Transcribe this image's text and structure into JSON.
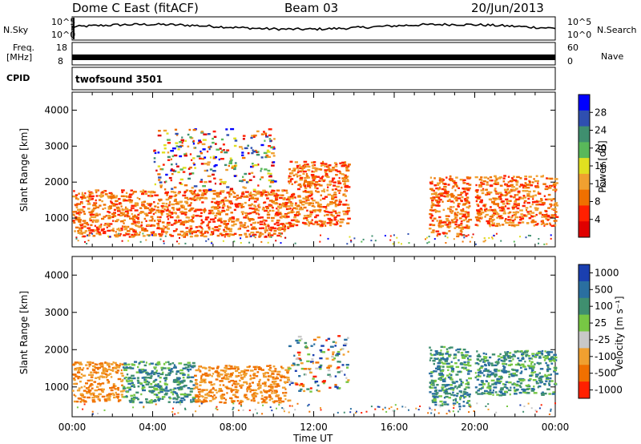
{
  "header": {
    "station": "Dome C East (fitACF)",
    "beam": "Beam 03",
    "date": "20/Jun/2013"
  },
  "strips": {
    "nsky_label": "N.Sky",
    "nsky_ticks": [
      "10^5",
      "10^0"
    ],
    "nsearch_label": "N.Search",
    "nsearch_ticks": [
      "10^5",
      "10^0"
    ],
    "freq_label_1": "Freq.",
    "freq_label_2": "[MHz]",
    "freq_ticks": [
      "18",
      "8"
    ],
    "nave_label": "Nave",
    "nave_ticks": [
      "60",
      "0"
    ],
    "cpid_label": "CPID",
    "cpid_value": "twofsound 3501"
  },
  "chart_data": [
    {
      "type": "heatmap",
      "name": "power",
      "ylabel": "Slant Range [km]",
      "yticks": [
        "1000",
        "2000",
        "3000",
        "4000"
      ],
      "ylim": [
        200,
        4500
      ],
      "xlim": [
        0,
        24
      ],
      "colorbar_label": "Power [dB]",
      "colorbar_ticks": [
        "4",
        "8",
        "12",
        "16",
        "20",
        "24",
        "28"
      ],
      "colorbar_colors": [
        "#0000ff",
        "#2f4fb0",
        "#3f8f6f",
        "#59b85a",
        "#e0e020",
        "#f0a030",
        "#f07000",
        "#ff2000",
        "#e00000"
      ],
      "echo_regions": [
        {
          "t0": 0.0,
          "t1": 10.7,
          "r0": 500,
          "r1": 1800,
          "level": "strong"
        },
        {
          "t0": 10.7,
          "t1": 13.7,
          "r0": 800,
          "r1": 2600,
          "level": "strong"
        },
        {
          "t0": 17.7,
          "t1": 19.7,
          "r0": 500,
          "r1": 2200,
          "level": "strong"
        },
        {
          "t0": 20.0,
          "t1": 24.0,
          "r0": 800,
          "r1": 2200,
          "level": "strong"
        },
        {
          "t0": 4.0,
          "t1": 10.0,
          "r0": 1800,
          "r1": 3500,
          "level": "mixed"
        }
      ]
    },
    {
      "type": "heatmap",
      "name": "velocity",
      "ylabel": "Slant Range [km]",
      "yticks": [
        "1000",
        "2000",
        "3000",
        "4000"
      ],
      "ylim": [
        200,
        4500
      ],
      "xlim": [
        0,
        24
      ],
      "xlabel": "Time UT",
      "xticks": [
        "00:00",
        "04:00",
        "08:00",
        "12:00",
        "16:00",
        "20:00",
        "00:00"
      ],
      "colorbar_label": "Velocity [m s⁻¹]",
      "colorbar_ticks": [
        "1000",
        "500",
        "100",
        "25",
        "-25",
        "-100",
        "-500",
        "-1000"
      ],
      "colorbar_colors": [
        "#1a3fb0",
        "#2a6fa0",
        "#3f8f6f",
        "#77c744",
        "#c8c8c8",
        "#f0a030",
        "#f07000",
        "#ff2000"
      ],
      "echo_regions": [
        {
          "t0": 0.0,
          "t1": 2.5,
          "r0": 600,
          "r1": 1700,
          "level": "negative"
        },
        {
          "t0": 2.5,
          "t1": 6.0,
          "r0": 600,
          "r1": 1700,
          "level": "positive"
        },
        {
          "t0": 6.0,
          "t1": 10.7,
          "r0": 600,
          "r1": 1600,
          "level": "negative"
        },
        {
          "t0": 10.7,
          "t1": 13.7,
          "r0": 900,
          "r1": 2400,
          "level": "mixed"
        },
        {
          "t0": 17.7,
          "t1": 19.7,
          "r0": 500,
          "r1": 2100,
          "level": "positive"
        },
        {
          "t0": 20.0,
          "t1": 24.0,
          "r0": 800,
          "r1": 2000,
          "level": "positive"
        }
      ]
    }
  ]
}
